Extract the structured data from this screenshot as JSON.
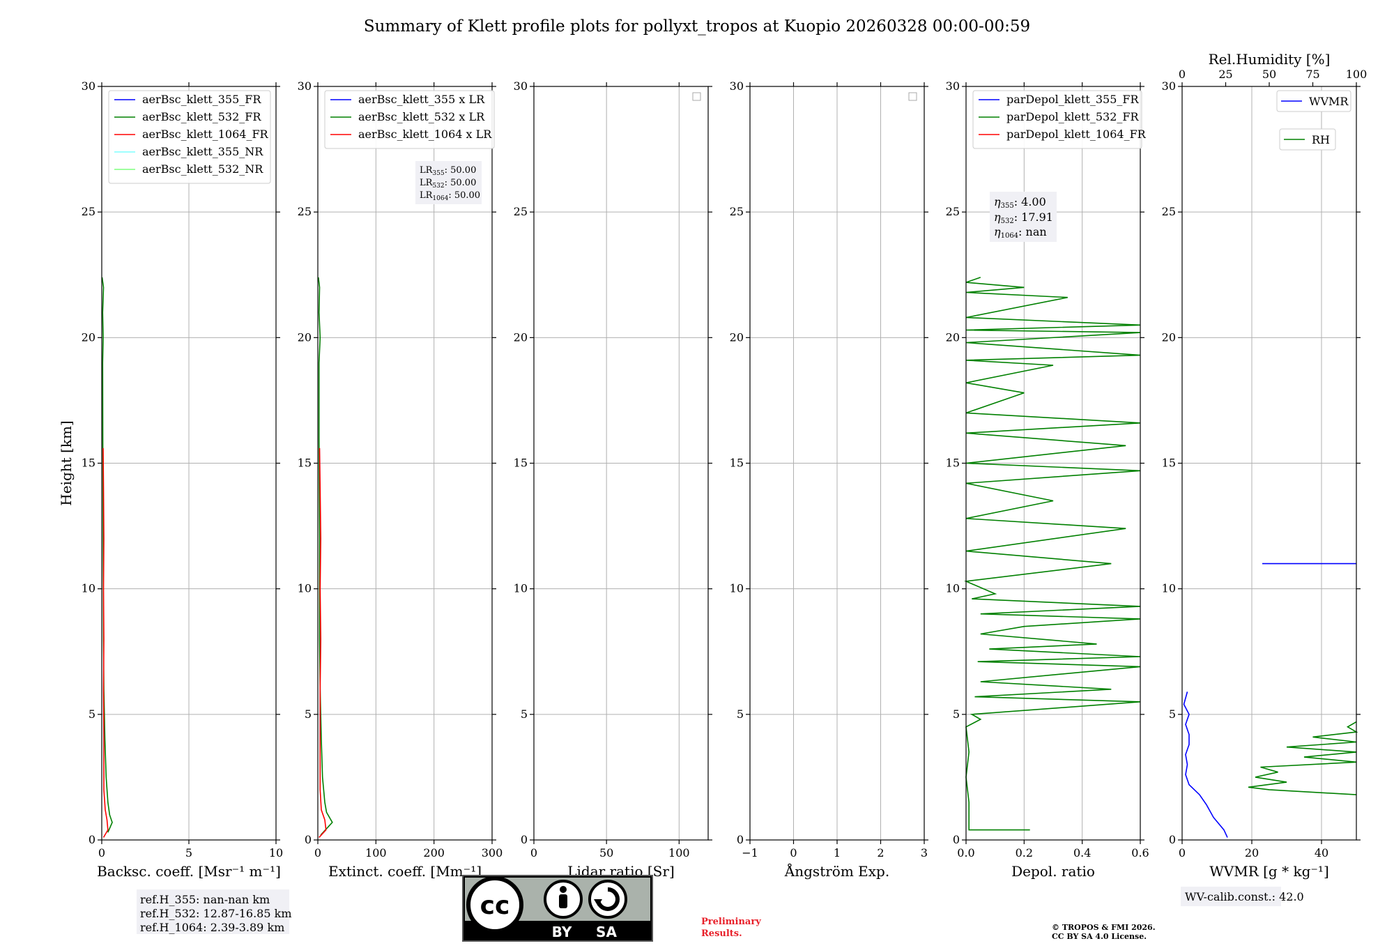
{
  "title": "Summary of Klett profile plots for pollyxt_tropos at Kuopio 20260328 00:00-00:59",
  "colors": {
    "blue": "#0000ff",
    "green": "#008000",
    "red": "#ff0000",
    "cyan": "#7fffff",
    "lightgreen": "#7fff7f",
    "grid": "#b0b0b0",
    "boxbg": "#f0f0f5"
  },
  "chart_data": [
    {
      "type": "line",
      "id": "bsc",
      "ylabel": "Height [km]",
      "xlabel": "Backsc. coeff. [Msr⁻¹ m⁻¹]",
      "xlim": [
        0,
        10
      ],
      "ylim": [
        0,
        30
      ],
      "xticks": [
        0,
        5,
        10
      ],
      "xtick_labels": [
        "0",
        "5",
        "10"
      ],
      "yticks": [
        0,
        5,
        10,
        15,
        20,
        25,
        30
      ],
      "ytick_labels": [
        "0",
        "5",
        "10",
        "15",
        "20",
        "25",
        "30"
      ],
      "legend": [
        "aerBsc_klett_355_FR",
        "aerBsc_klett_532_FR",
        "aerBsc_klett_1064_FR",
        "aerBsc_klett_355_NR",
        "aerBsc_klett_532_NR"
      ],
      "legend_colors": [
        "#0000ff",
        "#008000",
        "#ff0000",
        "#7fffff",
        "#7fff7f"
      ],
      "series": [
        {
          "name": "aerBsc_klett_532_FR",
          "color": "#008000",
          "points": [
            [
              0.35,
              0.3
            ],
            [
              0.6,
              0.7
            ],
            [
              0.45,
              1.0
            ],
            [
              0.35,
              1.5
            ],
            [
              0.25,
              2.5
            ],
            [
              0.18,
              4
            ],
            [
              0.12,
              6
            ],
            [
              0.1,
              8
            ],
            [
              0.08,
              12
            ],
            [
              0.06,
              16
            ],
            [
              0.05,
              19
            ],
            [
              0.08,
              20
            ],
            [
              0.05,
              21
            ],
            [
              0.1,
              22
            ],
            [
              0.02,
              22.4
            ]
          ]
        },
        {
          "name": "aerBsc_klett_1064_FR",
          "color": "#ff0000",
          "points": [
            [
              0.1,
              0.1
            ],
            [
              0.35,
              0.4
            ],
            [
              0.3,
              0.8
            ],
            [
              0.2,
              1.2
            ],
            [
              0.12,
              2
            ],
            [
              0.12,
              4
            ],
            [
              0.1,
              6
            ],
            [
              0.12,
              8
            ],
            [
              0.1,
              10
            ],
            [
              0.12,
              12
            ],
            [
              0.1,
              14
            ],
            [
              0.08,
              15.6
            ]
          ]
        }
      ]
    },
    {
      "type": "line",
      "id": "ext",
      "xlabel": "Extinct. coeff. [Mm⁻¹]",
      "xlim": [
        0,
        300
      ],
      "ylim": [
        0,
        30
      ],
      "xticks": [
        0,
        100,
        200,
        300
      ],
      "xtick_labels": [
        "0",
        "100",
        "200",
        "300"
      ],
      "yticks": [
        0,
        5,
        10,
        15,
        20,
        25,
        30
      ],
      "ytick_labels": [
        "0",
        "5",
        "10",
        "15",
        "20",
        "25",
        "30"
      ],
      "legend": [
        "aerBsc_klett_355 x LR",
        "aerBsc_klett_532 x LR",
        "aerBsc_klett_1064 x LR"
      ],
      "legend_colors": [
        "#0000ff",
        "#008000",
        "#ff0000"
      ],
      "series": [
        {
          "name": "aerBsc_klett_532 x LR",
          "color": "#008000",
          "points": [
            [
              5,
              0.2
            ],
            [
              25,
              0.7
            ],
            [
              15,
              1.1
            ],
            [
              12,
              1.5
            ],
            [
              8,
              2.5
            ],
            [
              6,
              4
            ],
            [
              4,
              6
            ],
            [
              3,
              8
            ],
            [
              3,
              12
            ],
            [
              2,
              16
            ],
            [
              2,
              19
            ],
            [
              4,
              20
            ],
            [
              2,
              21
            ],
            [
              3,
              22
            ],
            [
              1,
              22.4
            ]
          ]
        },
        {
          "name": "aerBsc_klett_1064 x LR",
          "color": "#ff0000",
          "points": [
            [
              2,
              0.1
            ],
            [
              14,
              0.4
            ],
            [
              12,
              0.8
            ],
            [
              6,
              1.2
            ],
            [
              4,
              2
            ],
            [
              4,
              4
            ],
            [
              4,
              6
            ],
            [
              5,
              8
            ],
            [
              4,
              10
            ],
            [
              5,
              12
            ],
            [
              4,
              14
            ],
            [
              3,
              15.6
            ]
          ]
        }
      ]
    },
    {
      "type": "line",
      "id": "lr",
      "xlabel": "Lidar ratio [Sr]",
      "xlim": [
        0,
        120
      ],
      "ylim": [
        0,
        30
      ],
      "xticks": [
        0,
        50,
        100
      ],
      "xtick_labels": [
        "0",
        "50",
        "100"
      ],
      "yticks": [
        0,
        5,
        10,
        15,
        20,
        25,
        30
      ],
      "ytick_labels": [
        "0",
        "5",
        "10",
        "15",
        "20",
        "25",
        "30"
      ],
      "legend": [],
      "series": []
    },
    {
      "type": "line",
      "id": "ae",
      "xlabel": "Ångström Exp.",
      "xlim": [
        -1,
        3
      ],
      "ylim": [
        0,
        30
      ],
      "xticks": [
        -1,
        0,
        1,
        2,
        3
      ],
      "xtick_labels": [
        "−1",
        "0",
        "1",
        "2",
        "3"
      ],
      "yticks": [
        0,
        5,
        10,
        15,
        20,
        25,
        30
      ],
      "ytick_labels": [
        "0",
        "5",
        "10",
        "15",
        "20",
        "25",
        "30"
      ],
      "legend": [],
      "series": []
    },
    {
      "type": "line",
      "id": "depol",
      "xlabel": "Depol. ratio",
      "xlim": [
        0,
        0.6
      ],
      "ylim": [
        0,
        30
      ],
      "xticks": [
        0,
        0.2,
        0.4,
        0.6
      ],
      "xtick_labels": [
        "0.0",
        "0.2",
        "0.4",
        "0.6"
      ],
      "yticks": [
        0,
        5,
        10,
        15,
        20,
        25,
        30
      ],
      "ytick_labels": [
        "0",
        "5",
        "10",
        "15",
        "20",
        "25",
        "30"
      ],
      "legend": [
        "parDepol_klett_355_FR",
        "parDepol_klett_532_FR",
        "parDepol_klett_1064_FR"
      ],
      "legend_colors": [
        "#0000ff",
        "#008000",
        "#ff0000"
      ],
      "series": [
        {
          "name": "parDepol_klett_532_FR",
          "color": "#008000",
          "points": [
            [
              0.22,
              0.4
            ],
            [
              0.01,
              0.4
            ],
            [
              0.01,
              1.5
            ],
            [
              0.0,
              2.5
            ],
            [
              0.01,
              3.5
            ],
            [
              0.0,
              4.5
            ],
            [
              0.05,
              4.8
            ],
            [
              0.02,
              5
            ],
            [
              0.6,
              5.5
            ],
            [
              0.03,
              5.7
            ],
            [
              0.5,
              6.0
            ],
            [
              0.05,
              6.3
            ],
            [
              0.6,
              6.9
            ],
            [
              0.04,
              7.1
            ],
            [
              0.6,
              7.3
            ],
            [
              0.08,
              7.6
            ],
            [
              0.45,
              7.8
            ],
            [
              0.05,
              8.2
            ],
            [
              0.2,
              8.5
            ],
            [
              0.6,
              8.8
            ],
            [
              0.05,
              9.0
            ],
            [
              0.6,
              9.3
            ],
            [
              0.02,
              9.6
            ],
            [
              0.1,
              9.8
            ],
            [
              0.0,
              10.3
            ],
            [
              0.5,
              11.0
            ],
            [
              0.0,
              11.5
            ],
            [
              0.55,
              12.4
            ],
            [
              0.0,
              12.8
            ],
            [
              0.3,
              13.5
            ],
            [
              0.0,
              14.2
            ],
            [
              0.6,
              14.7
            ],
            [
              0.0,
              15.0
            ],
            [
              0.55,
              15.7
            ],
            [
              0.0,
              16.2
            ],
            [
              0.6,
              16.6
            ],
            [
              0.0,
              17
            ],
            [
              0.2,
              17.8
            ],
            [
              0.0,
              18.2
            ],
            [
              0.3,
              18.9
            ],
            [
              0.0,
              19.1
            ],
            [
              0.6,
              19.3
            ],
            [
              0.0,
              19.8
            ],
            [
              0.6,
              20.2
            ],
            [
              0.0,
              20.3
            ],
            [
              0.6,
              20.5
            ],
            [
              0.0,
              20.8
            ],
            [
              0.35,
              21.6
            ],
            [
              0.0,
              21.8
            ],
            [
              0.2,
              22
            ],
            [
              0.0,
              22.2
            ],
            [
              0.05,
              22.4
            ]
          ]
        }
      ]
    },
    {
      "type": "line",
      "id": "wv",
      "xlabel": "WVMR [g * kg⁻¹]",
      "x2label": "Rel.Humidity [%]",
      "xlim": [
        0,
        50
      ],
      "ylim": [
        0,
        30
      ],
      "xticks": [
        0,
        20,
        40
      ],
      "xtick_labels": [
        "0",
        "20",
        "40"
      ],
      "x2lim": [
        0,
        100
      ],
      "x2ticks": [
        0,
        25,
        50,
        75,
        100
      ],
      "x2tick_labels": [
        "0",
        "25",
        "50",
        "75",
        "100"
      ],
      "yticks": [
        0,
        5,
        10,
        15,
        20,
        25,
        30
      ],
      "ytick_labels": [
        "0",
        "5",
        "10",
        "15",
        "20",
        "25",
        "30"
      ],
      "legend": [
        "WVMR",
        "RH"
      ],
      "legend_colors": [
        "#0000ff",
        "#008000"
      ],
      "series": [
        {
          "name": "WVMR",
          "color": "#0000ff",
          "points": [
            [
              13,
              0.1
            ],
            [
              12,
              0.4
            ],
            [
              9,
              0.9
            ],
            [
              7,
              1.4
            ],
            [
              5,
              1.8
            ],
            [
              2,
              2.2
            ],
            [
              1,
              2.6
            ],
            [
              1.5,
              3
            ],
            [
              1,
              3.4
            ],
            [
              2,
              3.8
            ],
            [
              2,
              4.2
            ],
            [
              1,
              4.6
            ],
            [
              2,
              5.0
            ],
            [
              0.5,
              5.4
            ],
            [
              1.5,
              5.9
            ]
          ]
        },
        {
          "name": "RH",
          "color": "#008000",
          "points": [
            [
              100,
              1.8
            ],
            [
              50,
              2.0
            ],
            [
              38,
              2.1
            ],
            [
              60,
              2.3
            ],
            [
              42,
              2.5
            ],
            [
              55,
              2.7
            ],
            [
              45,
              2.9
            ],
            [
              100,
              3.1
            ],
            [
              70,
              3.3
            ],
            [
              100,
              3.5
            ],
            [
              60,
              3.7
            ],
            [
              100,
              3.9
            ],
            [
              75,
              4.1
            ],
            [
              100,
              4.3
            ],
            [
              95,
              4.5
            ],
            [
              100,
              4.7
            ]
          ]
        },
        {
          "name": "WVMR_line",
          "color": "#0000ff",
          "points": [
            [
              23,
              11
            ],
            [
              50,
              11
            ]
          ]
        }
      ]
    }
  ],
  "annotations": {
    "lr_line1": "LR",
    "lr_sub1": "355",
    "lr_val1": ": 50.00",
    "lr_line2": "LR",
    "lr_sub2": "532",
    "lr_val2": ": 50.00",
    "lr_line3": "LR",
    "lr_sub3": "1064",
    "lr_val3": ": 50.00",
    "eta_sym": "η",
    "eta_sub1": "355",
    "eta_val1": ": 4.00",
    "eta_sub2": "532",
    "eta_val2": ": 17.91",
    "eta_sub3": "1064",
    "eta_val3": ": nan",
    "refh1": "ref.H_355: nan-nan km",
    "refh2": "ref.H_532: 12.87-16.85 km",
    "refh3": "ref.H_1064: 2.39-3.89 km",
    "wvcalib": "WV-calib.const.: 42.0",
    "prelim1": "Preliminary",
    "prelim2": "Results.",
    "copyright1": "© TROPOS & FMI 2026.",
    "copyright2": "CC BY SA 4.0 License.",
    "cc_logo": "cc",
    "cc_by": "BY",
    "cc_sa": "SA"
  }
}
